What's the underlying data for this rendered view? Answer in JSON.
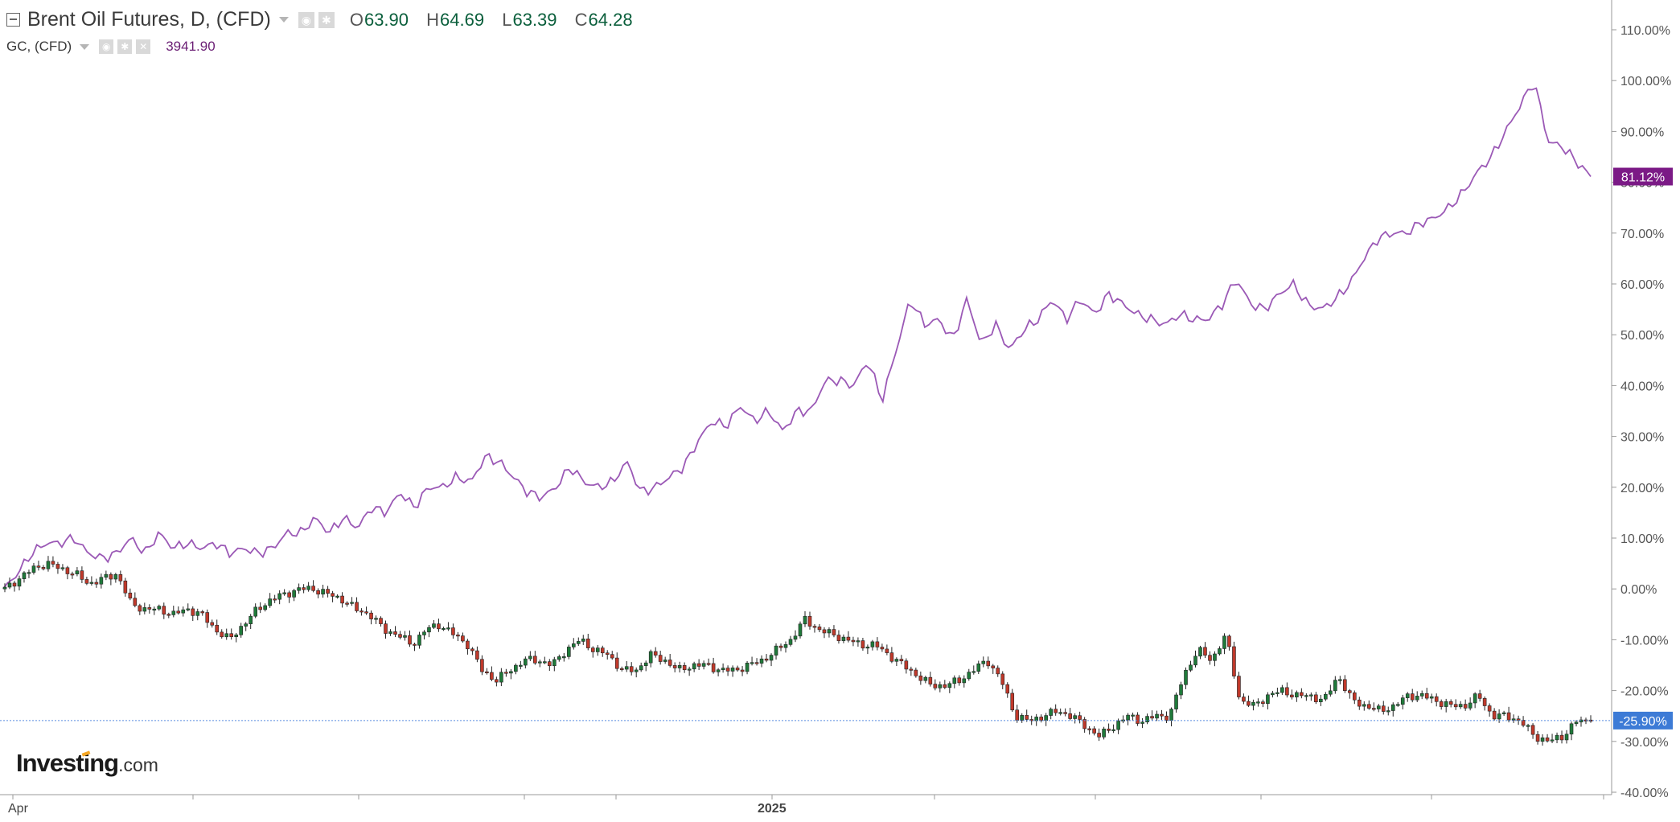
{
  "header": {
    "main_symbol": "Brent Oil Futures, D, (CFD)",
    "ohlc": [
      {
        "key": "O",
        "value": "63.90"
      },
      {
        "key": "H",
        "value": "64.69"
      },
      {
        "key": "L",
        "value": "63.39"
      },
      {
        "key": "C",
        "value": "64.28"
      }
    ],
    "compare_symbol": "GC, (CFD)",
    "compare_value": "3941.90"
  },
  "icons": {
    "collapse": "collapse-icon",
    "dropdown": "chevron-down-icon",
    "visibility": "eye-icon",
    "settings": "gear-icon",
    "remove": "close-icon"
  },
  "branding": {
    "logo_main": "Investing",
    "logo_suffix": ".com"
  },
  "colors": {
    "gold_line": "#9b59b6",
    "gold_badge": "#7b1a86",
    "brent_up": "#1f7a3a",
    "brent_down": "#c0392b",
    "brent_badge": "#3d7bd6",
    "current_line": "#5a8ce0",
    "ohlc_text": "#0b5f3c"
  },
  "chart_data": {
    "type": "line",
    "title": "Brent Oil Futures, D, (CFD)",
    "ylabel": "",
    "xlabel": "",
    "y_unit": "percent change",
    "ylim": [
      -40,
      110
    ],
    "x_ticks": [
      "Apr",
      "2025"
    ],
    "y_ticks": [
      "110.00%",
      "100.00%",
      "90.00%",
      "80.00%",
      "70.00%",
      "60.00%",
      "50.00%",
      "40.00%",
      "30.00%",
      "20.00%",
      "10.00%",
      "0.00%",
      "-10.00%",
      "-20.00%",
      "-30.00%",
      "-40.00%"
    ],
    "grid": false,
    "last_value_badges": [
      {
        "series": "GC, (CFD)",
        "label": "81.12%",
        "value": 81.12
      },
      {
        "series": "Brent Oil Futures, D, (CFD)",
        "label": "-25.90%",
        "value": -25.9
      }
    ],
    "series": [
      {
        "name": "GC, (CFD)",
        "style": "line",
        "values": [
          0,
          3,
          7,
          9,
          9,
          10,
          7,
          6,
          7,
          10,
          7,
          11,
          8,
          9,
          8,
          9,
          7,
          8,
          7,
          8,
          11,
          11,
          14,
          11,
          14,
          12,
          16,
          15,
          19,
          16,
          20,
          20,
          22,
          21,
          26,
          25,
          22,
          19,
          18,
          20,
          24,
          21,
          20,
          21,
          25,
          19,
          20,
          22,
          24,
          29,
          33,
          32,
          36,
          33,
          35,
          31,
          35,
          35,
          41,
          41,
          40,
          45,
          37,
          47,
          57,
          52,
          53,
          49,
          57,
          48,
          52,
          47,
          51,
          53,
          57,
          53,
          57,
          54,
          58,
          56,
          54,
          53,
          52,
          54,
          53,
          53,
          56,
          61,
          56,
          55,
          58,
          60,
          56,
          55,
          57,
          60,
          65,
          69,
          70,
          70,
          72,
          73,
          75,
          78,
          82,
          85,
          90,
          95,
          100,
          88,
          87,
          84,
          81.12
        ]
      },
      {
        "name": "Brent Oil Futures, D, (CFD)",
        "style": "candlestick",
        "values": [
          0,
          2,
          4,
          5,
          4,
          3,
          1,
          2,
          3,
          -3,
          -4,
          -4,
          -5,
          -4,
          -5,
          -8,
          -10,
          -7,
          -4,
          -2,
          -1,
          0,
          0,
          -1,
          -2,
          -4,
          -5,
          -8,
          -9,
          -11,
          -8,
          -7,
          -9,
          -11,
          -16,
          -18,
          -16,
          -14,
          -14,
          -15,
          -12,
          -10,
          -12,
          -13,
          -16,
          -16,
          -13,
          -14,
          -16,
          -15,
          -15,
          -16,
          -16,
          -15,
          -14,
          -12,
          -10,
          -6,
          -8,
          -9,
          -10,
          -11,
          -11,
          -13,
          -15,
          -17,
          -19,
          -19,
          -18,
          -16,
          -14,
          -18,
          -25,
          -26,
          -25,
          -24,
          -25,
          -27,
          -29,
          -27,
          -25,
          -26,
          -25,
          -25,
          -17,
          -12,
          -14,
          -9,
          -22,
          -23,
          -21,
          -20,
          -21,
          -21,
          -22,
          -17,
          -22,
          -23,
          -24,
          -23,
          -21,
          -21,
          -22,
          -23,
          -23,
          -21,
          -25,
          -25,
          -26,
          -29,
          -30,
          -29,
          -26,
          -25.9
        ]
      }
    ]
  }
}
